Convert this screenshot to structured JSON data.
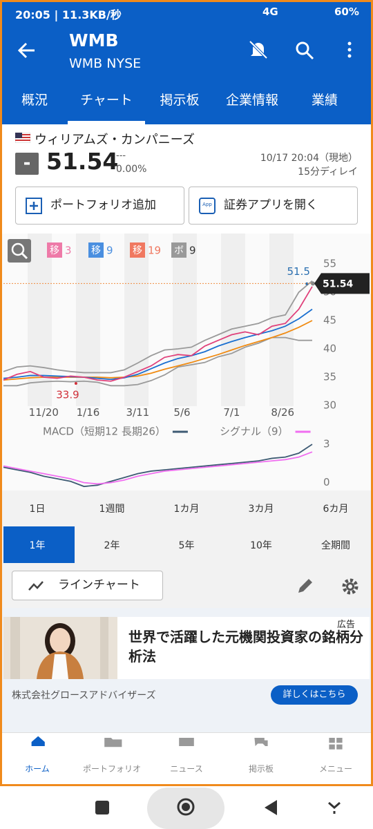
{
  "status_bar": {
    "time": "20:05",
    "speed": "11.3KB/秒",
    "network": "4G",
    "battery": "60%"
  },
  "header": {
    "title": "WMB",
    "subtitle": "WMB NYSE"
  },
  "tabs": [
    "概況",
    "チャート",
    "掲示板",
    "企業情報",
    "業績"
  ],
  "quote": {
    "name": "ウィリアムズ・カンパニーズ",
    "sign": "-",
    "price": "51.54",
    "change": "---",
    "change_pct": "0.00%",
    "time": "10/17 20:04（現地）",
    "delay": "15分ディレイ"
  },
  "buttons": [
    "ポートフォリオ追加",
    "証券アプリを開く"
  ],
  "chart_data": [
    {
      "type": "line",
      "legend": [
        {
          "badge": "移",
          "period": 3,
          "color": "#ee7aa8"
        },
        {
          "badge": "移",
          "period": 9,
          "color": "#4a8fe0"
        },
        {
          "badge": "移",
          "period": 19,
          "color": "#f07860"
        },
        {
          "badge": "ボ",
          "period": 9,
          "color": "#999999"
        }
      ],
      "x": [
        0,
        1,
        2,
        3,
        4,
        5,
        6,
        7,
        8,
        9,
        10,
        11,
        12,
        13,
        14,
        15,
        16,
        17,
        18,
        19,
        20,
        21,
        22,
        23
      ],
      "xlim": [
        0,
        23
      ],
      "xticks": [
        {
          "value": 3,
          "label": "11/20"
        },
        {
          "value": 6.3,
          "label": "1/16"
        },
        {
          "value": 10,
          "label": "3/11"
        },
        {
          "value": 13.3,
          "label": "5/6"
        },
        {
          "value": 17,
          "label": "7/1"
        },
        {
          "value": 20.8,
          "label": "8/26"
        }
      ],
      "ylim": [
        30,
        60
      ],
      "yticks": [
        30,
        35,
        40,
        45,
        50,
        55
      ],
      "series": [
        {
          "color": "#9a9a9a",
          "values": [
            36,
            36.8,
            37,
            36.7,
            36.3,
            36,
            35.8,
            35.8,
            35.8,
            36.3,
            37.5,
            38.8,
            39.8,
            40,
            40.3,
            41.5,
            42.5,
            43.5,
            44,
            44.5,
            45.5,
            46,
            50,
            52
          ]
        },
        {
          "color": "#9a9a9a",
          "values": [
            33.5,
            33.5,
            34,
            34.2,
            34.3,
            34.2,
            34.3,
            34.1,
            33.5,
            33.5,
            33.7,
            34.4,
            35.4,
            36.8,
            37.2,
            37.6,
            38.6,
            39.2,
            40.3,
            41,
            42,
            42,
            41.5,
            41.5
          ]
        },
        {
          "color": "#f08a10",
          "values": [
            34.5,
            34.7,
            34.9,
            35,
            35,
            35,
            35,
            35,
            34.9,
            35,
            35.2,
            35.7,
            36.4,
            37,
            37.6,
            38.3,
            39,
            39.8,
            40.6,
            41.3,
            42,
            42.8,
            43.8,
            45
          ]
        },
        {
          "color": "#1a6fd0",
          "values": [
            34.8,
            35,
            35.3,
            35.3,
            35.2,
            35.1,
            35,
            34.8,
            34.6,
            34.9,
            35.5,
            36.5,
            37.5,
            38.3,
            38.8,
            39.5,
            40.5,
            41.3,
            42,
            42.6,
            43.2,
            44,
            45.3,
            47
          ]
        },
        {
          "color": "#e0407a",
          "values": [
            34.5,
            35.5,
            36,
            35,
            34.8,
            35.2,
            35,
            34.5,
            34.3,
            35,
            36,
            37,
            38.5,
            39,
            38.8,
            40.5,
            41.5,
            42.5,
            43,
            42.5,
            44,
            44.5,
            47,
            51
          ]
        }
      ],
      "annotations": [
        {
          "x": 22.6,
          "value": 51.5,
          "color": "#2b6fb0"
        },
        {
          "x": 5.4,
          "value": 33.9,
          "color": "#d0303a"
        }
      ],
      "last_price": 51.54
    },
    {
      "type": "line",
      "legend": [
        {
          "name": "MACD（短期12 長期26）",
          "color": "#3d5a73"
        },
        {
          "name": "シグナル（9）",
          "color": "#f06ef0"
        }
      ],
      "x": [
        0,
        1,
        2,
        3,
        4,
        5,
        6,
        7,
        8,
        9,
        10,
        11,
        12,
        13,
        14,
        15,
        16,
        17,
        18,
        19,
        20,
        21,
        22,
        23
      ],
      "xlim": [
        0,
        23
      ],
      "ylim": [
        -0.4,
        3.6
      ],
      "yticks": [
        0,
        3
      ],
      "series": [
        {
          "color": "#3d5a73",
          "values": [
            1.2,
            1,
            0.8,
            0.5,
            0.3,
            0.1,
            -0.3,
            -0.2,
            0.1,
            0.4,
            0.7,
            0.9,
            1,
            1.1,
            1.2,
            1.3,
            1.4,
            1.5,
            1.6,
            1.7,
            1.9,
            2,
            2.3,
            3
          ]
        },
        {
          "color": "#f06ef0",
          "values": [
            1.3,
            1.1,
            0.9,
            0.7,
            0.5,
            0.3,
            0,
            -0.1,
            0,
            0.2,
            0.5,
            0.7,
            0.9,
            1,
            1.1,
            1.2,
            1.3,
            1.4,
            1.5,
            1.6,
            1.7,
            1.8,
            2,
            2.4
          ]
        }
      ]
    }
  ],
  "periods": [
    [
      "1日",
      "1週間",
      "1カ月",
      "3カ月",
      "6カ月"
    ],
    [
      "1年",
      "2年",
      "5年",
      "10年",
      "全期間"
    ]
  ],
  "chart_type": "ラインチャート",
  "ad": {
    "label": "広告",
    "headline": "世界で活躍した元機関投資家の銘柄分析法",
    "advertiser": "株式会社グロースアドバイザーズ",
    "cta": "詳しくはこちら"
  },
  "nav": [
    "ホーム",
    "ポートフォリオ",
    "ニュース",
    "掲示板",
    "メニュー"
  ]
}
